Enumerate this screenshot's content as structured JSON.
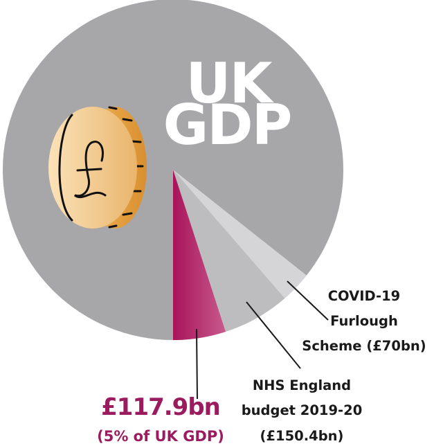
{
  "chart_data": {
    "type": "pie",
    "title": "UK GDP",
    "title_lines": [
      "UK",
      "GDP"
    ],
    "slices": [
      {
        "label_lines": [
          "£117.9bn",
          "(5% of UK GDP)"
        ],
        "value": 117.9,
        "percent": 5,
        "color": "#b0195f",
        "highlight": true
      },
      {
        "label_lines": [
          "NHS England",
          "budget 2019-20",
          "(£150.4bn)"
        ],
        "value": 150.4,
        "color": "#bdbdc0"
      },
      {
        "label_lines": [
          "COVID-19",
          "Furlough",
          "Scheme (£70bn)"
        ],
        "value": 70,
        "color": "#d5d5d8"
      }
    ],
    "background_color": "#a7a7aa",
    "icon": "pound-coin-icon"
  }
}
